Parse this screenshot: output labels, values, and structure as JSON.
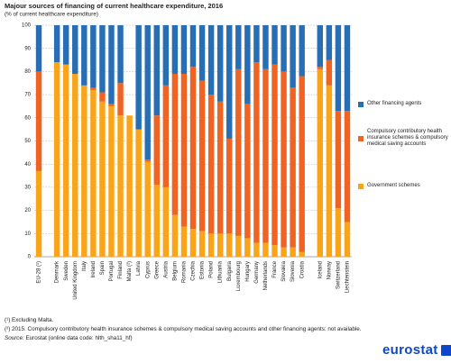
{
  "chart_data": {
    "type": "stacked_bar",
    "title": "Majour sources of financing of current healthcare expenditure, 2016",
    "subtitle": "(% of current healthcare expenditure)",
    "categories": [
      "EU-28 (¹)",
      null,
      "Denmark",
      "Sweden",
      "United Kingdom",
      "Italy",
      "Ireland",
      "Spain",
      "Portugal",
      "Finland",
      "Malta (²)",
      "Latvia",
      "Cyprus",
      "Greece",
      "Austria",
      "Belgium",
      "Romania",
      "Czechia",
      "Estonia",
      "Poland",
      "Lithuania",
      "Bulgaria",
      "Luxembourg",
      "Hungary",
      "Germany",
      "Netherlands",
      "France",
      "Slovakia",
      "Slovenia",
      "Croatia",
      null,
      "Iceland",
      "Norway",
      "Switzerland",
      "Liechtenstein"
    ],
    "series": [
      {
        "name": "Government schemes",
        "color": "#faa519",
        "values": [
          37,
          null,
          84,
          83,
          79,
          74,
          72,
          67,
          65,
          61,
          61,
          55,
          41,
          31,
          30,
          18,
          13,
          12,
          11,
          10,
          10,
          10,
          9,
          8,
          6,
          6,
          5,
          4,
          4,
          2,
          null,
          81,
          74,
          21,
          15
        ]
      },
      {
        "name": "Compulsory contributory health insurance schemes & compulsory medical saving accounts",
        "color": "#f06423",
        "values": [
          43,
          null,
          0,
          0,
          0,
          0,
          1,
          4,
          1,
          14,
          null,
          0,
          1,
          30,
          44,
          61,
          66,
          70,
          65,
          60,
          57,
          41,
          72,
          58,
          78,
          75,
          78,
          76,
          69,
          76,
          null,
          1,
          11,
          42,
          48
        ]
      },
      {
        "name": "Other financing agents",
        "color": "#286eb4",
        "values": [
          20,
          null,
          16,
          17,
          21,
          26,
          27,
          29,
          34,
          25,
          null,
          45,
          58,
          39,
          26,
          21,
          21,
          18,
          24,
          30,
          33,
          49,
          19,
          34,
          16,
          19,
          17,
          20,
          27,
          22,
          null,
          18,
          15,
          37,
          37
        ]
      }
    ],
    "ylim": [
      0,
      100
    ],
    "yticks": [
      0,
      10,
      20,
      30,
      40,
      50,
      60,
      70,
      80,
      90,
      100
    ],
    "grid": true
  },
  "notes": [
    "(¹) Excluding Malta.",
    "(²) 2015. Compulsory contributory health insurance schemes & compulsory medical saving accounts and other financing agents: not available."
  ],
  "source": {
    "label": "Source:",
    "text": "Eurostat (online data code: hlth_sha11_hf)"
  },
  "logo": "eurostat"
}
